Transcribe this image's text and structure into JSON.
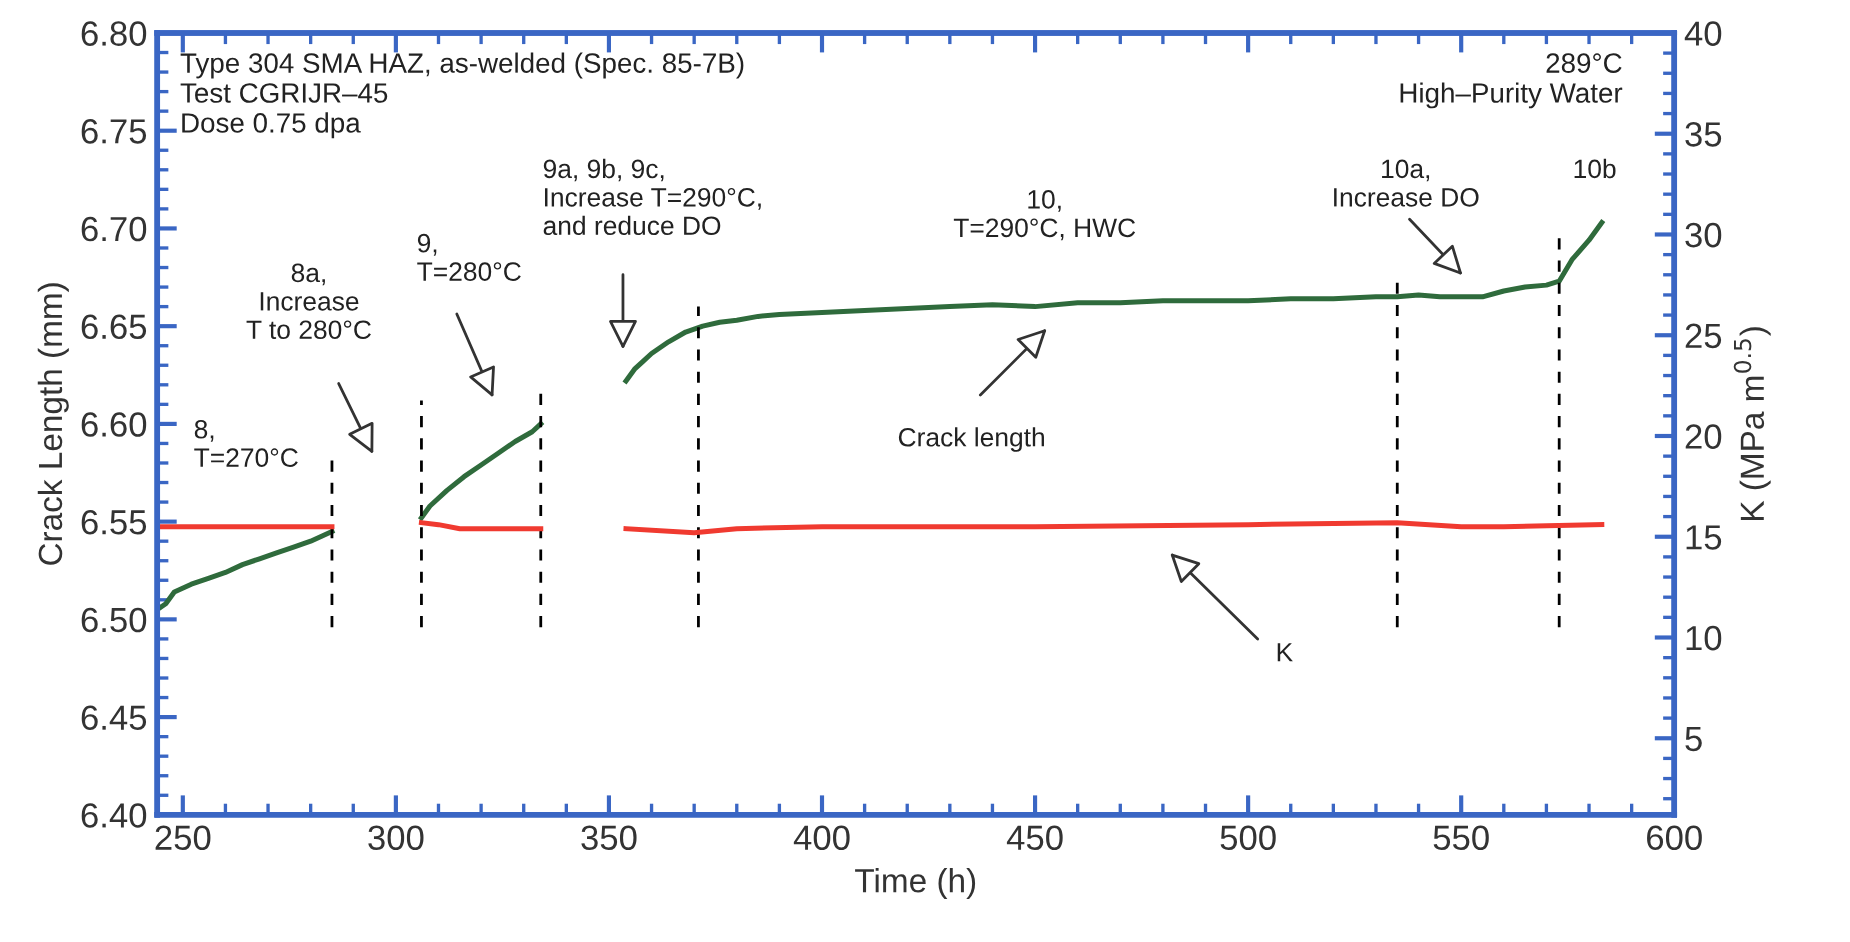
{
  "chart_data": {
    "type": "line",
    "xlabel": "Time (h)",
    "ylabel": "Crack Length (mm)",
    "y2label": "K (MPa m$^{0.5}$)",
    "xlim": [
      244,
      600
    ],
    "xticks": [
      250,
      300,
      350,
      400,
      450,
      500,
      550,
      600
    ],
    "ylim": [
      6.4,
      6.8
    ],
    "yticks": [
      {
        "value": 6.4,
        "label": "6.40"
      },
      6.45,
      {
        "value": 6.5,
        "label": "6.50"
      },
      6.55,
      {
        "value": 6.6,
        "label": "6.60"
      },
      6.65,
      {
        "value": 6.7,
        "label": "6.70"
      },
      6.75,
      {
        "value": 6.8,
        "label": "6.80"
      }
    ],
    "y2lim": [
      1.2,
      40
    ],
    "y2ticks": [
      5,
      10,
      15,
      20,
      25,
      30,
      35,
      40
    ],
    "grid": false,
    "legend": false,
    "marker": "none",
    "line_style": "solid",
    "series": [
      {
        "color": "#2f6b3c",
        "x": [
          244,
          246,
          248,
          252,
          256,
          260,
          264,
          268,
          272,
          276,
          280,
          285,
          295,
          306,
          308,
          312,
          316,
          320,
          324,
          328,
          332,
          334,
          344,
          354,
          356,
          358,
          360,
          364,
          368,
          372,
          376,
          380,
          385,
          390,
          400,
          410,
          420,
          430,
          440,
          450,
          460,
          470,
          480,
          490,
          500,
          510,
          520,
          530,
          535,
          540,
          545,
          550,
          555,
          560,
          565,
          570,
          573,
          576,
          580,
          583
        ],
        "values": [
          6.505,
          6.508,
          6.514,
          6.518,
          6.521,
          6.524,
          6.528,
          6.531,
          6.534,
          6.537,
          6.54,
          6.545,
          null,
          6.552,
          6.558,
          6.566,
          6.573,
          6.579,
          6.585,
          6.591,
          6.596,
          6.6,
          null,
          6.622,
          6.628,
          6.632,
          6.636,
          6.642,
          6.647,
          6.65,
          6.652,
          6.653,
          6.655,
          6.656,
          6.657,
          6.658,
          6.659,
          6.66,
          6.661,
          6.66,
          6.662,
          6.662,
          6.663,
          6.663,
          6.663,
          6.664,
          6.664,
          6.665,
          6.665,
          6.666,
          6.665,
          6.665,
          6.665,
          6.668,
          6.67,
          6.671,
          6.673,
          6.684,
          6.694,
          6.703
        ]
      },
      {
        "color": "#f03a30",
        "axis": "y2",
        "x": [
          245,
          255,
          265,
          275,
          285,
          295,
          306,
          310,
          315,
          325,
          334,
          344,
          354,
          370,
          380,
          400,
          450,
          500,
          535,
          550,
          560,
          583
        ],
        "values": [
          15.5,
          15.5,
          15.5,
          15.5,
          15.5,
          null,
          15.7,
          15.6,
          15.4,
          15.4,
          15.4,
          null,
          15.4,
          15.2,
          15.4,
          15.5,
          15.5,
          15.6,
          15.7,
          15.5,
          15.5,
          15.6
        ]
      }
    ],
    "ref_lines": [
      {
        "axis": "x",
        "value": 285,
        "color": "#000000",
        "line_style": "dashed"
      },
      {
        "axis": "x",
        "value": 306,
        "color": "#000000",
        "line_style": "dashed"
      },
      {
        "axis": "x",
        "value": 334,
        "color": "#000000",
        "line_style": "dashed"
      },
      {
        "axis": "x",
        "value": 371,
        "color": "#000000",
        "line_style": "dashed"
      },
      {
        "axis": "x",
        "value": 535,
        "color": "#000000",
        "line_style": "dashed"
      },
      {
        "axis": "x",
        "value": 573,
        "color": "#000000",
        "line_style": "dashed"
      }
    ],
    "annotations": [
      "Type 304 SMA HAZ, as-welded (Spec. 85-7B)\nTest CGRIJR–45\nDose 0.75 dpa",
      "289°C\nHigh–Purity Water",
      "8,\nT=270°C",
      "8a,\nIncrease\nT to 280°C",
      "9,\nT=280°C",
      "9a, 9b, 9c,\nIncrease T=290°C,\nand reduce DO",
      "10,\nT=290°C, HWC",
      "Crack length",
      "10a,\nIncrease DO",
      "10b",
      "K"
    ]
  }
}
